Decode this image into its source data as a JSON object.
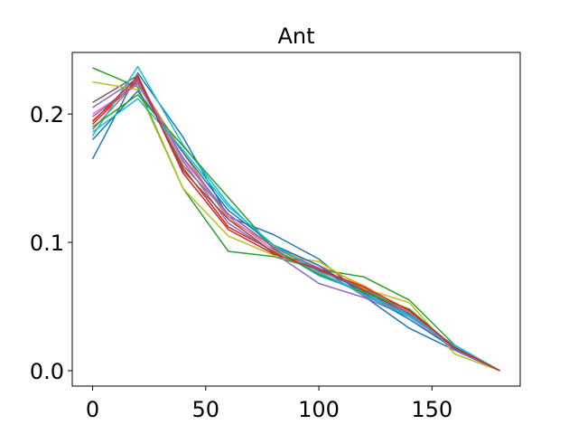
{
  "chart_data": {
    "type": "line",
    "title": "Ant",
    "xlabel": "",
    "ylabel": "",
    "xlim": [
      -9,
      189
    ],
    "ylim": [
      -0.012,
      0.248
    ],
    "x_ticks": [
      0,
      50,
      100,
      150
    ],
    "x_tick_labels": [
      "0",
      "50",
      "100",
      "150"
    ],
    "y_ticks": [
      0.0,
      0.1,
      0.2
    ],
    "y_tick_labels": [
      "0.0",
      "0.1",
      "0.2"
    ],
    "grid": false,
    "legend": "none",
    "x": [
      0,
      20,
      40,
      60,
      80,
      100,
      120,
      140,
      160,
      180
    ],
    "series": [
      {
        "color": "#1f77b4",
        "values": [
          0.165,
          0.232,
          0.182,
          0.12,
          0.106,
          0.087,
          0.058,
          0.033,
          0.016,
          0.0
        ]
      },
      {
        "color": "#ff7f0e",
        "values": [
          0.195,
          0.225,
          0.17,
          0.118,
          0.097,
          0.082,
          0.066,
          0.046,
          0.018,
          0.0
        ]
      },
      {
        "color": "#2ca02c",
        "values": [
          0.236,
          0.221,
          0.142,
          0.093,
          0.089,
          0.079,
          0.073,
          0.055,
          0.02,
          0.0
        ]
      },
      {
        "color": "#d62728",
        "values": [
          0.192,
          0.227,
          0.158,
          0.112,
          0.093,
          0.08,
          0.062,
          0.043,
          0.018,
          0.0
        ]
      },
      {
        "color": "#9467bd",
        "values": [
          0.205,
          0.228,
          0.163,
          0.115,
          0.092,
          0.068,
          0.057,
          0.042,
          0.017,
          0.0
        ]
      },
      {
        "color": "#8c564b",
        "values": [
          0.209,
          0.23,
          0.156,
          0.118,
          0.092,
          0.078,
          0.063,
          0.044,
          0.017,
          0.0
        ]
      },
      {
        "color": "#e377c2",
        "values": [
          0.2,
          0.223,
          0.165,
          0.12,
          0.094,
          0.076,
          0.061,
          0.042,
          0.017,
          0.0
        ]
      },
      {
        "color": "#7f7f7f",
        "values": [
          0.188,
          0.226,
          0.16,
          0.122,
          0.096,
          0.079,
          0.064,
          0.045,
          0.019,
          0.0
        ]
      },
      {
        "color": "#bcbd22",
        "values": [
          0.225,
          0.219,
          0.142,
          0.105,
          0.09,
          0.085,
          0.064,
          0.053,
          0.013,
          0.0
        ]
      },
      {
        "color": "#17becf",
        "values": [
          0.183,
          0.237,
          0.176,
          0.13,
          0.095,
          0.074,
          0.061,
          0.043,
          0.019,
          0.0
        ]
      },
      {
        "color": "#1f77b4",
        "values": [
          0.18,
          0.218,
          0.17,
          0.125,
          0.098,
          0.082,
          0.06,
          0.04,
          0.017,
          0.0
        ]
      },
      {
        "color": "#2ca02c",
        "values": [
          0.19,
          0.215,
          0.175,
          0.135,
          0.095,
          0.075,
          0.061,
          0.048,
          0.018,
          0.0
        ]
      },
      {
        "color": "#9467bd",
        "values": [
          0.198,
          0.224,
          0.166,
          0.122,
          0.096,
          0.08,
          0.058,
          0.045,
          0.016,
          0.0
        ]
      },
      {
        "color": "#17becf",
        "values": [
          0.186,
          0.212,
          0.172,
          0.128,
          0.098,
          0.077,
          0.059,
          0.042,
          0.02,
          0.0
        ]
      },
      {
        "color": "#d62728",
        "values": [
          0.194,
          0.229,
          0.154,
          0.11,
          0.091,
          0.079,
          0.065,
          0.047,
          0.018,
          0.0
        ]
      }
    ]
  }
}
